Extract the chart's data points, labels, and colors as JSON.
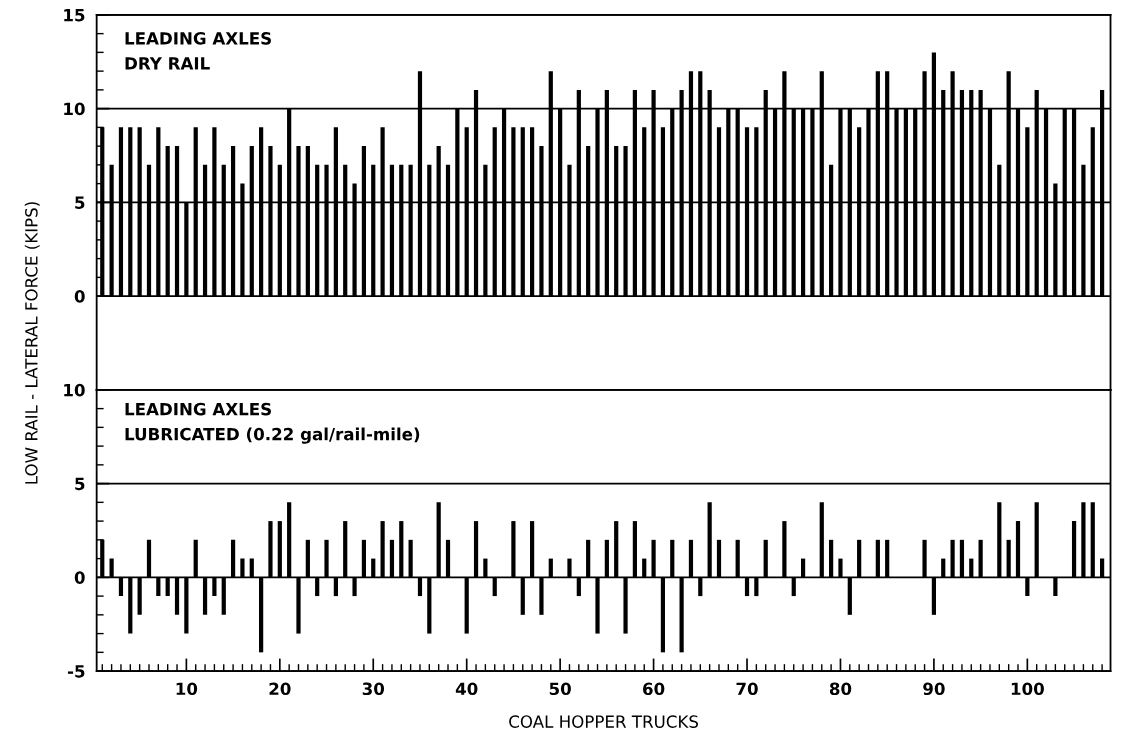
{
  "chart_data": [
    {
      "type": "bar",
      "color": "#000000",
      "ylabel": "LOW RAIL - LATERAL FORCE (KIPS)",
      "annotations": [
        "LEADING AXLES\nDRY RAIL"
      ],
      "x": [
        1,
        2,
        3,
        4,
        5,
        6,
        7,
        8,
        9,
        10,
        11,
        12,
        13,
        14,
        15,
        16,
        17,
        18,
        19,
        20,
        21,
        22,
        23,
        24,
        25,
        26,
        27,
        28,
        29,
        30,
        31,
        32,
        33,
        34,
        35,
        36,
        37,
        38,
        39,
        40,
        41,
        42,
        43,
        44,
        45,
        46,
        47,
        48,
        49,
        50,
        51,
        52,
        53,
        54,
        55,
        56,
        57,
        58,
        59,
        60,
        61,
        62,
        63,
        64,
        65,
        66,
        67,
        68,
        69,
        70,
        71,
        72,
        73,
        74,
        75,
        76,
        77,
        78,
        79,
        80,
        81,
        82,
        83,
        84,
        85,
        86,
        87,
        88,
        89,
        90,
        91,
        92,
        93,
        94,
        95,
        96,
        97,
        98,
        99,
        100,
        101,
        102,
        103,
        104,
        105,
        106,
        107,
        108
      ],
      "values": [
        9,
        7,
        9,
        9,
        9,
        7,
        9,
        8,
        8,
        5,
        9,
        7,
        9,
        7,
        8,
        6,
        8,
        9,
        8,
        7,
        10,
        8,
        8,
        7,
        7,
        9,
        7,
        6,
        8,
        7,
        9,
        7,
        7,
        7,
        12,
        7,
        8,
        7,
        10,
        9,
        11,
        7,
        9,
        10,
        9,
        9,
        9,
        8,
        12,
        10,
        7,
        11,
        8,
        10,
        11,
        8,
        8,
        11,
        9,
        11,
        9,
        10,
        11,
        12,
        12,
        11,
        9,
        10,
        10,
        9,
        9,
        11,
        10,
        12,
        10,
        10,
        10,
        12,
        7,
        10,
        10,
        9,
        10,
        12,
        12,
        10,
        10,
        10,
        12,
        13,
        11,
        12,
        11,
        11,
        11,
        10,
        7,
        12,
        10,
        9,
        11,
        10,
        6,
        10,
        10,
        7,
        9,
        11
      ],
      "xlim": [
        0.4,
        108.9
      ],
      "ylim": [
        -5,
        15
      ],
      "yticks": [
        0,
        {
          "value": 1,
          "label": null
        },
        {
          "value": 2,
          "label": null
        },
        {
          "value": 3,
          "label": null
        },
        {
          "value": 4,
          "label": null
        },
        5,
        {
          "value": 6,
          "label": null
        },
        {
          "value": 7,
          "label": null
        },
        {
          "value": 8,
          "label": null
        },
        {
          "value": 9,
          "label": null
        },
        10,
        {
          "value": 11,
          "label": null
        },
        {
          "value": 12,
          "label": null
        },
        {
          "value": 13,
          "label": null
        },
        {
          "value": 14,
          "label": null
        },
        15
      ],
      "grid": "y",
      "tick_labels": "y"
    },
    {
      "type": "bar",
      "color": "#000000",
      "xlabel": "COAL HOPPER TRUCKS",
      "annotations": [
        "LEADING AXLES\nLUBRICATED (0.22 gal/rail-mile)"
      ],
      "x": [
        1,
        2,
        3,
        4,
        5,
        6,
        7,
        8,
        9,
        10,
        11,
        12,
        13,
        14,
        15,
        16,
        17,
        18,
        19,
        20,
        21,
        22,
        23,
        24,
        25,
        26,
        27,
        28,
        29,
        30,
        31,
        32,
        33,
        34,
        35,
        36,
        37,
        38,
        39,
        40,
        41,
        42,
        43,
        44,
        45,
        46,
        47,
        48,
        49,
        50,
        51,
        52,
        53,
        54,
        55,
        56,
        57,
        58,
        59,
        60,
        61,
        62,
        63,
        64,
        65,
        66,
        67,
        68,
        69,
        70,
        71,
        72,
        73,
        74,
        75,
        76,
        77,
        78,
        79,
        80,
        81,
        82,
        83,
        84,
        85,
        86,
        87,
        88,
        89,
        90,
        91,
        92,
        93,
        94,
        95,
        96,
        97,
        98,
        99,
        100,
        101,
        102,
        103,
        104,
        105,
        106,
        107,
        108
      ],
      "values": [
        2,
        1,
        -1,
        -3,
        -2,
        2,
        -1,
        -1,
        -2,
        -3,
        2,
        -2,
        -1,
        -2,
        2,
        1,
        1,
        -4,
        3,
        3,
        4,
        -3,
        2,
        -1,
        2,
        -1,
        3,
        -1,
        2,
        1,
        3,
        2,
        3,
        2,
        -1,
        -3,
        4,
        2,
        null,
        -3,
        3,
        1,
        -1,
        null,
        3,
        -2,
        3,
        -2,
        1,
        null,
        1,
        -1,
        2,
        -3,
        2,
        3,
        -3,
        3,
        1,
        2,
        -4,
        2,
        -4,
        2,
        -1,
        4,
        2,
        null,
        2,
        -1,
        -1,
        2,
        null,
        3,
        -1,
        1,
        null,
        4,
        2,
        1,
        -2,
        2,
        null,
        2,
        2,
        null,
        null,
        null,
        2,
        -2,
        1,
        2,
        2,
        1,
        2,
        null,
        4,
        2,
        3,
        -1,
        4,
        null,
        -1,
        null,
        3,
        4,
        4,
        1
      ],
      "xlim": [
        0.4,
        108.9
      ],
      "ylim": [
        -5,
        10
      ],
      "xticks": [
        {
          "value": 1,
          "label": null
        },
        {
          "value": 2,
          "label": null
        },
        {
          "value": 3,
          "label": null
        },
        {
          "value": 4,
          "label": null
        },
        {
          "value": 5,
          "label": null
        },
        {
          "value": 6,
          "label": null
        },
        {
          "value": 7,
          "label": null
        },
        {
          "value": 8,
          "label": null
        },
        {
          "value": 9,
          "label": null
        },
        10,
        {
          "value": 11,
          "label": null
        },
        {
          "value": 12,
          "label": null
        },
        {
          "value": 13,
          "label": null
        },
        {
          "value": 14,
          "label": null
        },
        {
          "value": 15,
          "label": null
        },
        {
          "value": 16,
          "label": null
        },
        {
          "value": 17,
          "label": null
        },
        {
          "value": 18,
          "label": null
        },
        {
          "value": 19,
          "label": null
        },
        20,
        {
          "value": 21,
          "label": null
        },
        {
          "value": 22,
          "label": null
        },
        {
          "value": 23,
          "label": null
        },
        {
          "value": 24,
          "label": null
        },
        {
          "value": 25,
          "label": null
        },
        {
          "value": 26,
          "label": null
        },
        {
          "value": 27,
          "label": null
        },
        {
          "value": 28,
          "label": null
        },
        {
          "value": 29,
          "label": null
        },
        30,
        {
          "value": 31,
          "label": null
        },
        {
          "value": 32,
          "label": null
        },
        {
          "value": 33,
          "label": null
        },
        {
          "value": 34,
          "label": null
        },
        {
          "value": 35,
          "label": null
        },
        {
          "value": 36,
          "label": null
        },
        {
          "value": 37,
          "label": null
        },
        {
          "value": 38,
          "label": null
        },
        {
          "value": 39,
          "label": null
        },
        40,
        {
          "value": 41,
          "label": null
        },
        {
          "value": 42,
          "label": null
        },
        {
          "value": 43,
          "label": null
        },
        {
          "value": 44,
          "label": null
        },
        {
          "value": 45,
          "label": null
        },
        {
          "value": 46,
          "label": null
        },
        {
          "value": 47,
          "label": null
        },
        {
          "value": 48,
          "label": null
        },
        {
          "value": 49,
          "label": null
        },
        50,
        {
          "value": 51,
          "label": null
        },
        {
          "value": 52,
          "label": null
        },
        {
          "value": 53,
          "label": null
        },
        {
          "value": 54,
          "label": null
        },
        {
          "value": 55,
          "label": null
        },
        {
          "value": 56,
          "label": null
        },
        {
          "value": 57,
          "label": null
        },
        {
          "value": 58,
          "label": null
        },
        {
          "value": 59,
          "label": null
        },
        60,
        {
          "value": 61,
          "label": null
        },
        {
          "value": 62,
          "label": null
        },
        {
          "value": 63,
          "label": null
        },
        {
          "value": 64,
          "label": null
        },
        {
          "value": 65,
          "label": null
        },
        {
          "value": 66,
          "label": null
        },
        {
          "value": 67,
          "label": null
        },
        {
          "value": 68,
          "label": null
        },
        {
          "value": 69,
          "label": null
        },
        70,
        {
          "value": 71,
          "label": null
        },
        {
          "value": 72,
          "label": null
        },
        {
          "value": 73,
          "label": null
        },
        {
          "value": 74,
          "label": null
        },
        {
          "value": 75,
          "label": null
        },
        {
          "value": 76,
          "label": null
        },
        {
          "value": 77,
          "label": null
        },
        {
          "value": 78,
          "label": null
        },
        {
          "value": 79,
          "label": null
        },
        80,
        {
          "value": 81,
          "label": null
        },
        {
          "value": 82,
          "label": null
        },
        {
          "value": 83,
          "label": null
        },
        {
          "value": 84,
          "label": null
        },
        {
          "value": 85,
          "label": null
        },
        {
          "value": 86,
          "label": null
        },
        {
          "value": 87,
          "label": null
        },
        {
          "value": 88,
          "label": null
        },
        {
          "value": 89,
          "label": null
        },
        90,
        {
          "value": 91,
          "label": null
        },
        {
          "value": 92,
          "label": null
        },
        {
          "value": 93,
          "label": null
        },
        {
          "value": 94,
          "label": null
        },
        {
          "value": 95,
          "label": null
        },
        {
          "value": 96,
          "label": null
        },
        {
          "value": 97,
          "label": null
        },
        {
          "value": 98,
          "label": null
        },
        {
          "value": 99,
          "label": null
        },
        100,
        {
          "value": 101,
          "label": null
        },
        {
          "value": 102,
          "label": null
        },
        {
          "value": 103,
          "label": null
        },
        {
          "value": 104,
          "label": null
        },
        {
          "value": 105,
          "label": null
        },
        {
          "value": 106,
          "label": null
        },
        {
          "value": 107,
          "label": null
        },
        {
          "value": 108,
          "label": null
        }
      ],
      "yticks": [
        -5,
        {
          "value": -4,
          "label": null
        },
        {
          "value": -3,
          "label": null
        },
        {
          "value": -2,
          "label": null
        },
        {
          "value": -1,
          "label": null
        },
        0,
        {
          "value": 1,
          "label": null
        },
        {
          "value": 2,
          "label": null
        },
        {
          "value": 3,
          "label": null
        },
        {
          "value": 4,
          "label": null
        },
        5,
        {
          "value": 6,
          "label": null
        },
        {
          "value": 7,
          "label": null
        },
        {
          "value": 8,
          "label": null
        },
        {
          "value": 9,
          "label": null
        },
        10
      ],
      "grid": "y"
    }
  ]
}
